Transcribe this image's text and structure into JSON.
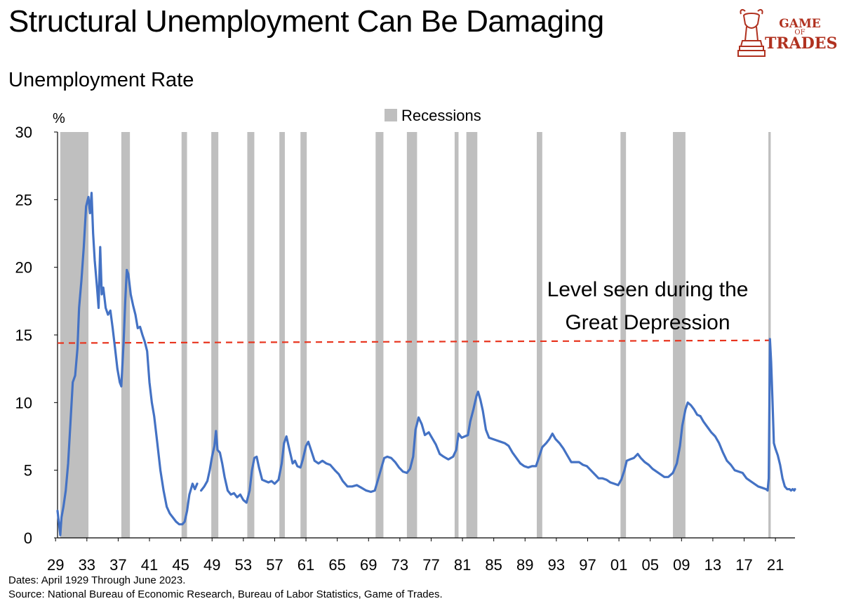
{
  "title": "Structural Unemployment Can Be Damaging",
  "logo": {
    "line1": "GAME",
    "line2": "OF",
    "line3": "TRADES"
  },
  "footnotes": {
    "dates": "Dates: April 1929 Through June 2023.",
    "source": "Source: National Bureau of Economic Research, Bureau of Labor Statistics, Game of Trades."
  },
  "colors": {
    "line": "#4472c4",
    "recession": "#bfbfbf",
    "threshold": "#e8351f",
    "brand": "#b0311f"
  },
  "chart_data": {
    "type": "line",
    "title": "Unemployment Rate",
    "ylabel": "%",
    "ylim": [
      0,
      30
    ],
    "xlim": [
      1929.25,
      2023.5
    ],
    "yticks": [
      0,
      5,
      10,
      15,
      20,
      25,
      30
    ],
    "xtick_labels": [
      "29",
      "33",
      "37",
      "41",
      "45",
      "49",
      "53",
      "57",
      "61",
      "65",
      "69",
      "73",
      "77",
      "81",
      "85",
      "89",
      "93",
      "97",
      "01",
      "05",
      "09",
      "13",
      "17",
      "21"
    ],
    "xtick_years": [
      1929,
      1933,
      1937,
      1941,
      1945,
      1949,
      1953,
      1957,
      1961,
      1965,
      1969,
      1973,
      1977,
      1981,
      1985,
      1989,
      1993,
      1997,
      2001,
      2005,
      2009,
      2013,
      2017,
      2021
    ],
    "legend": {
      "label": "Recessions",
      "position": "top-center"
    },
    "annotation": {
      "line1": "Level seen during the",
      "line2": "Great Depression",
      "value": 14.6
    },
    "recessions": [
      [
        1929.6,
        1933.2
      ],
      [
        1937.4,
        1938.5
      ],
      [
        1945.1,
        1945.8
      ],
      [
        1948.9,
        1949.8
      ],
      [
        1953.5,
        1954.4
      ],
      [
        1957.6,
        1958.3
      ],
      [
        1960.3,
        1961.1
      ],
      [
        1969.9,
        1970.9
      ],
      [
        1973.9,
        1975.2
      ],
      [
        1980.0,
        1980.5
      ],
      [
        1981.5,
        1982.9
      ],
      [
        1990.5,
        1991.2
      ],
      [
        2001.2,
        2001.9
      ],
      [
        2007.9,
        2009.5
      ],
      [
        2020.1,
        2020.4
      ]
    ],
    "series": [
      {
        "name": "Unemployment Rate",
        "segments": [
          [
            [
              1929.25,
              2.0
            ],
            [
              1929.6,
              0.2
            ],
            [
              1929.75,
              1.5
            ],
            [
              1930.0,
              2.3
            ],
            [
              1930.3,
              3.5
            ],
            [
              1930.6,
              5.5
            ],
            [
              1930.9,
              8.5
            ],
            [
              1931.2,
              11.5
            ],
            [
              1931.5,
              12.0
            ],
            [
              1931.8,
              14.0
            ],
            [
              1932.0,
              17.0
            ],
            [
              1932.3,
              19.0
            ],
            [
              1932.6,
              21.5
            ],
            [
              1932.9,
              24.5
            ],
            [
              1933.2,
              25.2
            ],
            [
              1933.4,
              24.0
            ],
            [
              1933.6,
              25.5
            ],
            [
              1933.8,
              22.5
            ],
            [
              1934.0,
              20.5
            ],
            [
              1934.3,
              18.5
            ],
            [
              1934.5,
              17.0
            ],
            [
              1934.7,
              21.5
            ],
            [
              1934.9,
              18.0
            ],
            [
              1935.1,
              18.5
            ],
            [
              1935.4,
              17.0
            ],
            [
              1935.7,
              16.5
            ],
            [
              1936.0,
              16.8
            ],
            [
              1936.3,
              15.5
            ],
            [
              1936.6,
              14.0
            ],
            [
              1936.9,
              12.5
            ],
            [
              1937.2,
              11.5
            ],
            [
              1937.4,
              11.2
            ],
            [
              1937.7,
              14.5
            ],
            [
              1937.9,
              17.5
            ],
            [
              1938.1,
              19.8
            ],
            [
              1938.3,
              19.5
            ],
            [
              1938.6,
              18.0
            ],
            [
              1938.9,
              17.2
            ],
            [
              1939.2,
              16.5
            ],
            [
              1939.5,
              15.5
            ],
            [
              1939.8,
              15.6
            ],
            [
              1940.1,
              15.0
            ],
            [
              1940.4,
              14.5
            ],
            [
              1940.7,
              13.8
            ],
            [
              1941.0,
              11.5
            ],
            [
              1941.3,
              10.0
            ],
            [
              1941.6,
              9.0
            ],
            [
              1942.0,
              7.0
            ],
            [
              1942.4,
              5.0
            ],
            [
              1942.8,
              3.5
            ],
            [
              1943.2,
              2.3
            ],
            [
              1943.6,
              1.8
            ],
            [
              1944.0,
              1.5
            ],
            [
              1944.4,
              1.2
            ],
            [
              1944.8,
              1.0
            ],
            [
              1945.2,
              1.0
            ],
            [
              1945.5,
              1.2
            ],
            [
              1945.8,
              2.0
            ],
            [
              1946.1,
              3.2
            ],
            [
              1946.5,
              4.0
            ],
            [
              1946.8,
              3.6
            ],
            [
              1947.1,
              4.0
            ]
          ],
          [
            [
              1947.6,
              3.5
            ],
            [
              1948.0,
              3.8
            ],
            [
              1948.4,
              4.2
            ],
            [
              1948.7,
              5.0
            ],
            [
              1949.0,
              6.0
            ],
            [
              1949.3,
              6.8
            ],
            [
              1949.5,
              7.9
            ],
            [
              1949.7,
              6.5
            ],
            [
              1950.0,
              6.3
            ],
            [
              1950.3,
              5.5
            ],
            [
              1950.6,
              4.5
            ],
            [
              1951.0,
              3.5
            ],
            [
              1951.4,
              3.2
            ],
            [
              1951.8,
              3.3
            ],
            [
              1952.2,
              3.0
            ],
            [
              1952.6,
              3.2
            ],
            [
              1953.0,
              2.8
            ],
            [
              1953.4,
              2.6
            ],
            [
              1953.8,
              3.5
            ],
            [
              1954.1,
              5.0
            ],
            [
              1954.4,
              5.9
            ],
            [
              1954.7,
              6.0
            ],
            [
              1955.0,
              5.2
            ],
            [
              1955.4,
              4.3
            ],
            [
              1955.8,
              4.2
            ],
            [
              1956.2,
              4.1
            ],
            [
              1956.6,
              4.2
            ],
            [
              1957.0,
              4.0
            ],
            [
              1957.5,
              4.3
            ],
            [
              1957.9,
              5.5
            ],
            [
              1958.2,
              7.0
            ],
            [
              1958.5,
              7.5
            ],
            [
              1958.9,
              6.5
            ],
            [
              1959.3,
              5.5
            ],
            [
              1959.6,
              5.7
            ],
            [
              1959.9,
              5.3
            ],
            [
              1960.3,
              5.2
            ],
            [
              1960.6,
              5.8
            ],
            [
              1961.0,
              6.8
            ],
            [
              1961.3,
              7.1
            ],
            [
              1961.7,
              6.4
            ],
            [
              1962.1,
              5.7
            ],
            [
              1962.6,
              5.5
            ],
            [
              1963.1,
              5.7
            ],
            [
              1963.6,
              5.5
            ],
            [
              1964.1,
              5.4
            ],
            [
              1964.7,
              5.0
            ],
            [
              1965.2,
              4.7
            ],
            [
              1965.7,
              4.2
            ],
            [
              1966.3,
              3.8
            ],
            [
              1966.9,
              3.8
            ],
            [
              1967.5,
              3.9
            ],
            [
              1968.1,
              3.7
            ],
            [
              1968.7,
              3.5
            ],
            [
              1969.3,
              3.4
            ],
            [
              1969.8,
              3.5
            ],
            [
              1970.3,
              4.5
            ],
            [
              1970.7,
              5.3
            ],
            [
              1971.0,
              5.9
            ],
            [
              1971.4,
              6.0
            ],
            [
              1971.9,
              5.9
            ],
            [
              1972.4,
              5.6
            ],
            [
              1972.9,
              5.2
            ],
            [
              1973.4,
              4.9
            ],
            [
              1973.9,
              4.8
            ],
            [
              1974.3,
              5.1
            ],
            [
              1974.7,
              6.0
            ],
            [
              1975.0,
              8.0
            ],
            [
              1975.4,
              8.9
            ],
            [
              1975.8,
              8.4
            ],
            [
              1976.2,
              7.6
            ],
            [
              1976.7,
              7.8
            ],
            [
              1977.1,
              7.4
            ],
            [
              1977.6,
              6.9
            ],
            [
              1978.1,
              6.2
            ],
            [
              1978.6,
              6.0
            ],
            [
              1979.2,
              5.8
            ],
            [
              1979.8,
              6.0
            ],
            [
              1980.2,
              6.5
            ],
            [
              1980.5,
              7.7
            ],
            [
              1980.9,
              7.4
            ],
            [
              1981.3,
              7.5
            ],
            [
              1981.7,
              7.6
            ],
            [
              1982.0,
              8.6
            ],
            [
              1982.4,
              9.5
            ],
            [
              1982.8,
              10.5
            ],
            [
              1983.0,
              10.8
            ],
            [
              1983.3,
              10.2
            ],
            [
              1983.6,
              9.4
            ],
            [
              1984.0,
              8.0
            ],
            [
              1984.4,
              7.4
            ],
            [
              1984.9,
              7.3
            ],
            [
              1985.4,
              7.2
            ],
            [
              1985.9,
              7.1
            ],
            [
              1986.4,
              7.0
            ],
            [
              1986.9,
              6.8
            ],
            [
              1987.4,
              6.3
            ],
            [
              1987.9,
              5.9
            ],
            [
              1988.4,
              5.5
            ],
            [
              1988.9,
              5.3
            ],
            [
              1989.4,
              5.2
            ],
            [
              1989.9,
              5.3
            ],
            [
              1990.4,
              5.3
            ],
            [
              1990.8,
              6.0
            ],
            [
              1991.2,
              6.7
            ],
            [
              1991.7,
              7.0
            ],
            [
              1992.1,
              7.3
            ],
            [
              1992.5,
              7.7
            ],
            [
              1992.9,
              7.3
            ],
            [
              1993.4,
              7.0
            ],
            [
              1993.9,
              6.6
            ],
            [
              1994.4,
              6.1
            ],
            [
              1994.9,
              5.6
            ],
            [
              1995.4,
              5.6
            ],
            [
              1995.9,
              5.6
            ],
            [
              1996.4,
              5.4
            ],
            [
              1996.9,
              5.3
            ],
            [
              1997.4,
              5.0
            ],
            [
              1997.9,
              4.7
            ],
            [
              1998.4,
              4.4
            ],
            [
              1998.9,
              4.4
            ],
            [
              1999.4,
              4.3
            ],
            [
              1999.9,
              4.1
            ],
            [
              2000.4,
              4.0
            ],
            [
              2000.9,
              3.9
            ],
            [
              2001.3,
              4.3
            ],
            [
              2001.7,
              5.0
            ],
            [
              2002.0,
              5.7
            ],
            [
              2002.4,
              5.8
            ],
            [
              2002.9,
              5.9
            ],
            [
              2003.4,
              6.2
            ],
            [
              2003.8,
              5.9
            ],
            [
              2004.3,
              5.6
            ],
            [
              2004.8,
              5.4
            ],
            [
              2005.3,
              5.1
            ],
            [
              2005.8,
              4.9
            ],
            [
              2006.3,
              4.7
            ],
            [
              2006.8,
              4.5
            ],
            [
              2007.3,
              4.5
            ],
            [
              2007.9,
              4.8
            ],
            [
              2008.4,
              5.5
            ],
            [
              2008.8,
              6.8
            ],
            [
              2009.1,
              8.3
            ],
            [
              2009.5,
              9.5
            ],
            [
              2009.8,
              10.0
            ],
            [
              2010.2,
              9.8
            ],
            [
              2010.6,
              9.5
            ],
            [
              2011.0,
              9.1
            ],
            [
              2011.4,
              9.0
            ],
            [
              2011.8,
              8.6
            ],
            [
              2012.3,
              8.2
            ],
            [
              2012.8,
              7.8
            ],
            [
              2013.3,
              7.5
            ],
            [
              2013.8,
              7.0
            ],
            [
              2014.3,
              6.3
            ],
            [
              2014.8,
              5.7
            ],
            [
              2015.3,
              5.4
            ],
            [
              2015.8,
              5.0
            ],
            [
              2016.3,
              4.9
            ],
            [
              2016.8,
              4.8
            ],
            [
              2017.3,
              4.4
            ],
            [
              2017.8,
              4.2
            ],
            [
              2018.3,
              4.0
            ],
            [
              2018.8,
              3.8
            ],
            [
              2019.3,
              3.7
            ],
            [
              2019.8,
              3.6
            ],
            [
              2020.0,
              3.5
            ],
            [
              2020.15,
              4.4
            ],
            [
              2020.3,
              14.7
            ],
            [
              2020.45,
              13.0
            ],
            [
              2020.6,
              10.5
            ],
            [
              2020.8,
              7.0
            ],
            [
              2021.0,
              6.6
            ],
            [
              2021.3,
              6.1
            ],
            [
              2021.6,
              5.4
            ],
            [
              2021.9,
              4.4
            ],
            [
              2022.2,
              3.8
            ],
            [
              2022.5,
              3.6
            ],
            [
              2022.8,
              3.6
            ],
            [
              2023.0,
              3.5
            ],
            [
              2023.2,
              3.6
            ],
            [
              2023.4,
              3.5
            ],
            [
              2023.5,
              3.6
            ]
          ]
        ]
      }
    ]
  }
}
